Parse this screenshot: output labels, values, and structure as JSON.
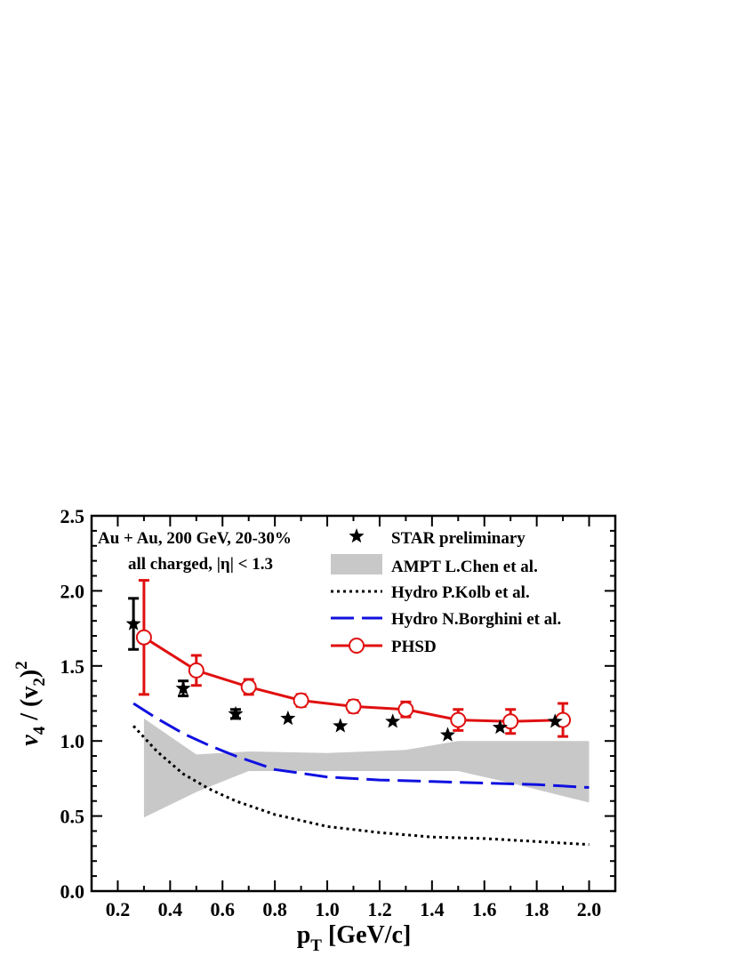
{
  "chart_data": {
    "type": "line",
    "xlabel": "p",
    "xlabel_sub": "T",
    "xlabel_rest": " [GeV/c]",
    "ylabel_parts": [
      "v",
      "4",
      " / (v",
      "2",
      ")",
      "2"
    ],
    "xlim": [
      0.1,
      2.1
    ],
    "ylim": [
      0.0,
      2.5
    ],
    "x_ticks": [
      "0.2",
      "0.4",
      "0.6",
      "0.8",
      "1.0",
      "1.2",
      "1.4",
      "1.6",
      "1.8",
      "2.0"
    ],
    "y_ticks": [
      "0.0",
      "0.5",
      "1.0",
      "1.5",
      "2.0",
      "2.5"
    ],
    "annotation_lines": [
      "Au + Au, 200 GeV, 20-30%",
      "all charged, |η| < 1.3"
    ],
    "legend_position": "top-right",
    "series": [
      {
        "name": "STAR preliminary",
        "style": "star-markers",
        "color": "#000000",
        "x": [
          0.26,
          0.45,
          0.65,
          0.85,
          1.05,
          1.25,
          1.46,
          1.66,
          1.87
        ],
        "y": [
          1.78,
          1.35,
          1.18,
          1.15,
          1.1,
          1.13,
          1.04,
          1.09,
          1.13
        ],
        "err": [
          0.17,
          0.05,
          0.03,
          0,
          0,
          0,
          0,
          0,
          0
        ]
      },
      {
        "name": "AMPT L.Chen et al.",
        "style": "band",
        "color": "#c8c8c8",
        "x": [
          0.3,
          0.5,
          0.7,
          1.0,
          1.3,
          1.5,
          1.7,
          2.0
        ],
        "upper": [
          1.15,
          0.91,
          0.93,
          0.92,
          0.94,
          1.0,
          1.0,
          1.0
        ],
        "lower": [
          0.49,
          0.66,
          0.8,
          0.8,
          0.8,
          0.8,
          0.72,
          0.59
        ]
      },
      {
        "name": "Hydro P.Kolb et al.",
        "style": "dotted",
        "color": "#000000",
        "x": [
          0.26,
          0.35,
          0.45,
          0.55,
          0.65,
          0.8,
          1.0,
          1.2,
          1.4,
          1.6,
          1.8,
          2.0
        ],
        "y": [
          1.1,
          0.93,
          0.78,
          0.68,
          0.6,
          0.51,
          0.43,
          0.39,
          0.36,
          0.35,
          0.33,
          0.31
        ]
      },
      {
        "name": "Hydro N.Borghini et al.",
        "style": "dashed",
        "color": "#1010e0",
        "x": [
          0.26,
          0.35,
          0.45,
          0.55,
          0.65,
          0.8,
          1.0,
          1.2,
          1.4,
          1.6,
          1.8,
          2.0
        ],
        "y": [
          1.25,
          1.15,
          1.05,
          0.97,
          0.9,
          0.81,
          0.76,
          0.74,
          0.73,
          0.72,
          0.71,
          0.69
        ]
      },
      {
        "name": "PHSD",
        "style": "line-open-circles",
        "color": "#e01010",
        "x": [
          0.3,
          0.5,
          0.7,
          0.9,
          1.1,
          1.3,
          1.5,
          1.7,
          1.9
        ],
        "y": [
          1.69,
          1.47,
          1.36,
          1.27,
          1.23,
          1.21,
          1.14,
          1.13,
          1.14
        ],
        "err": [
          0.38,
          0.1,
          0.05,
          0.04,
          0.04,
          0.05,
          0.07,
          0.08,
          0.11
        ]
      }
    ]
  }
}
